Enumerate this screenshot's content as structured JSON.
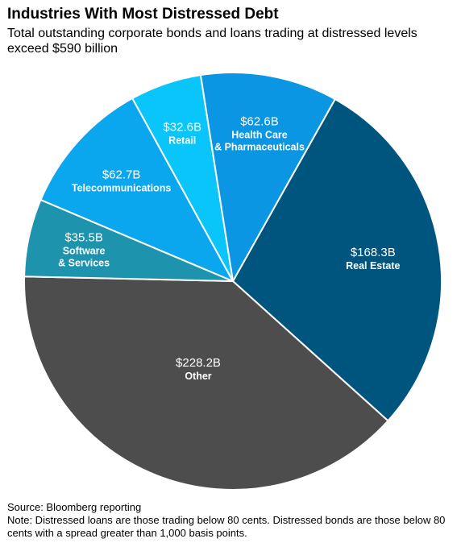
{
  "title": "Industries With Most Distressed Debt",
  "subtitle": "Total outstanding corporate bonds and loans trading at distressed levels exceed $590 billion",
  "chart_data": {
    "type": "pie",
    "unit": "billion USD",
    "slices": [
      {
        "label": "Real Estate",
        "value": 168.3,
        "value_label": "$168.3B",
        "color": "#00557f"
      },
      {
        "label": "Other",
        "value": 228.2,
        "value_label": "$228.2B",
        "color": "#4d4d4d"
      },
      {
        "label": "Software & Services",
        "value": 35.5,
        "value_label": "$35.5B",
        "color": "#1e93ad"
      },
      {
        "label": "Telecommunications",
        "value": 62.7,
        "value_label": "$62.7B",
        "color": "#0aa7ef"
      },
      {
        "label": "Retail",
        "value": 32.6,
        "value_label": "$32.6B",
        "color": "#0ac5f9"
      },
      {
        "label": "Health Care & Pharmaceuticals",
        "value": 62.6,
        "value_label": "$62.6B",
        "color": "#0a96e2"
      }
    ]
  },
  "footer": {
    "source": "Source: Bloomberg reporting",
    "note": "Note: Distressed loans are those trading below 80 cents. Distressed bonds are those below 80 cents with a spread greater than 1,000 basis points."
  }
}
